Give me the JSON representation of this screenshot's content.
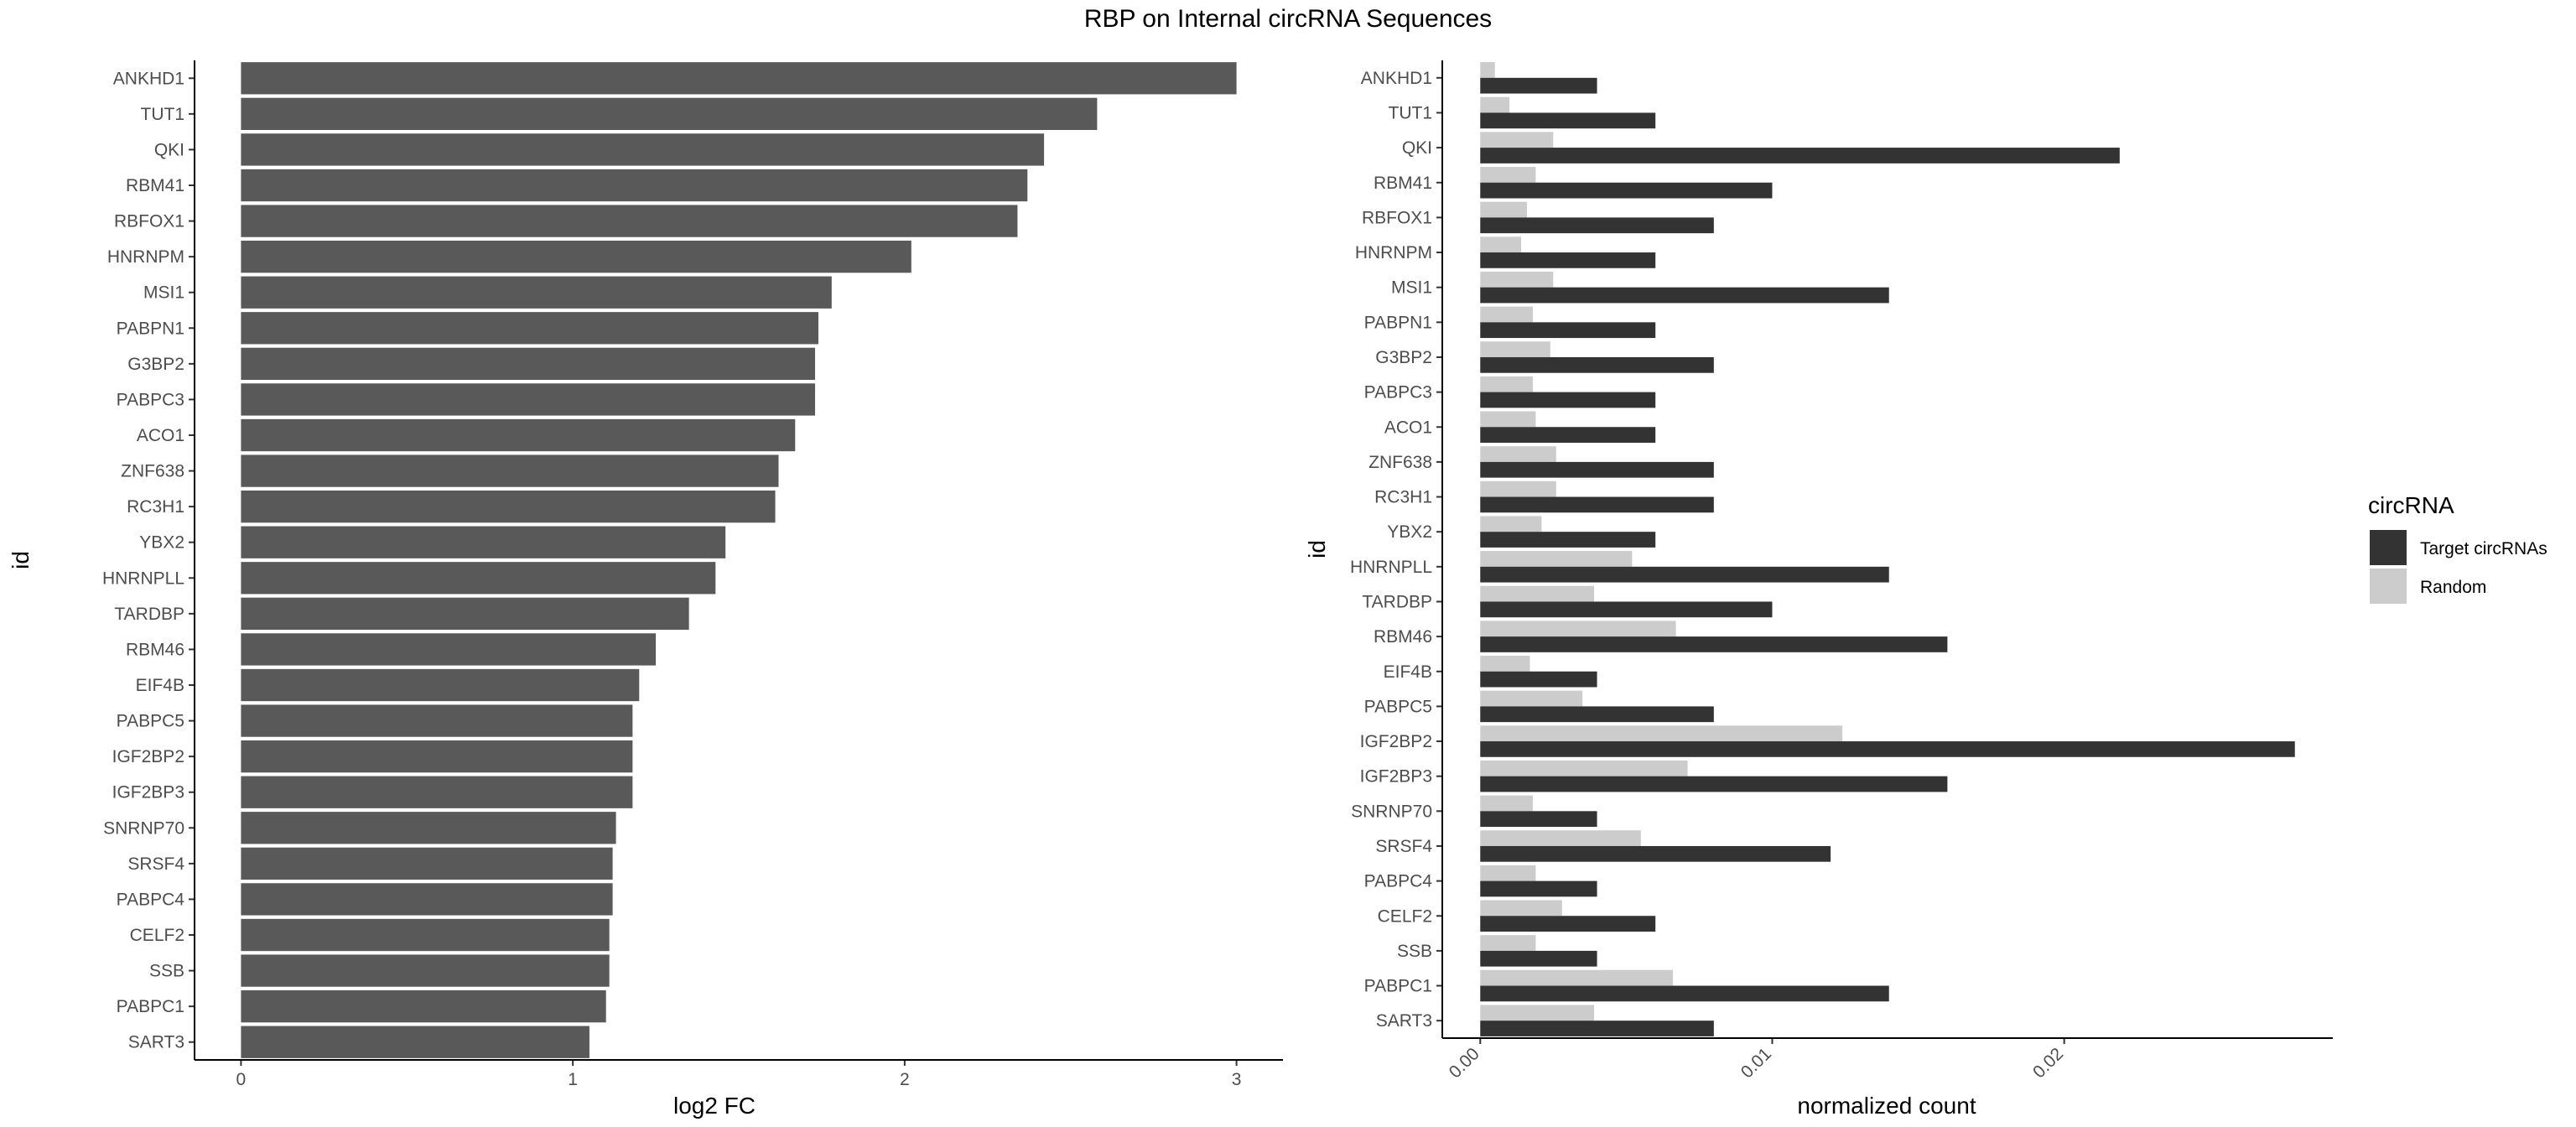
{
  "figure": {
    "title": "RBP on Internal circRNA Sequences"
  },
  "chart_data": [
    {
      "type": "bar",
      "orientation": "horizontal",
      "title": "",
      "xlabel": "log2 FC",
      "ylabel": "id",
      "xlim": [
        -0.14,
        3.14
      ],
      "x_ticks": [
        "0",
        "1",
        "2",
        "3"
      ],
      "grid": false,
      "bar_color": "#595959",
      "categories": [
        "ANKHD1",
        "TUT1",
        "QKI",
        "RBM41",
        "RBFOX1",
        "HNRNPM",
        "MSI1",
        "PABPN1",
        "G3BP2",
        "PABPC3",
        "ACO1",
        "ZNF638",
        "RC3H1",
        "YBX2",
        "HNRNPLL",
        "TARDBP",
        "RBM46",
        "EIF4B",
        "PABPC5",
        "IGF2BP2",
        "IGF2BP3",
        "SNRNP70",
        "SRSF4",
        "PABPC4",
        "CELF2",
        "SSB",
        "PABPC1",
        "SART3"
      ],
      "values": [
        3.0,
        2.58,
        2.42,
        2.37,
        2.34,
        2.02,
        1.78,
        1.74,
        1.73,
        1.73,
        1.67,
        1.62,
        1.61,
        1.46,
        1.43,
        1.35,
        1.25,
        1.2,
        1.18,
        1.18,
        1.18,
        1.13,
        1.12,
        1.12,
        1.11,
        1.11,
        1.1,
        1.05
      ]
    },
    {
      "type": "bar",
      "orientation": "horizontal",
      "title": "",
      "xlabel": "normalized count",
      "ylabel": "id",
      "xlim": [
        -0.0013,
        0.0292
      ],
      "x_ticks": [
        "0.00",
        "0.01",
        "0.02"
      ],
      "grid": false,
      "legend": {
        "title": "circRNA",
        "placement": "right",
        "entries": [
          "Target circRNAs",
          "Random"
        ]
      },
      "categories": [
        "ANKHD1",
        "TUT1",
        "QKI",
        "RBM41",
        "RBFOX1",
        "HNRNPM",
        "MSI1",
        "PABPN1",
        "G3BP2",
        "PABPC3",
        "ACO1",
        "ZNF638",
        "RC3H1",
        "YBX2",
        "HNRNPLL",
        "TARDBP",
        "RBM46",
        "EIF4B",
        "PABPC5",
        "IGF2BP2",
        "IGF2BP3",
        "SNRNP70",
        "SRSF4",
        "PABPC4",
        "CELF2",
        "SSB",
        "PABPC1",
        "SART3"
      ],
      "series": [
        {
          "name": "Target circRNAs",
          "color": "#333333",
          "values": [
            0.004,
            0.006,
            0.0219,
            0.01,
            0.008,
            0.006,
            0.014,
            0.006,
            0.008,
            0.006,
            0.006,
            0.008,
            0.008,
            0.006,
            0.014,
            0.01,
            0.016,
            0.004,
            0.008,
            0.0279,
            0.016,
            0.004,
            0.012,
            0.004,
            0.006,
            0.004,
            0.014,
            0.008
          ]
        },
        {
          "name": "Random",
          "color": "#cccccc",
          "values": [
            0.0005,
            0.001,
            0.0025,
            0.0019,
            0.0016,
            0.0014,
            0.0025,
            0.0018,
            0.0024,
            0.0018,
            0.0019,
            0.0026,
            0.0026,
            0.0021,
            0.0052,
            0.0039,
            0.0067,
            0.0017,
            0.0035,
            0.0124,
            0.0071,
            0.0018,
            0.0055,
            0.0019,
            0.0028,
            0.0019,
            0.0066,
            0.0039
          ]
        }
      ]
    }
  ]
}
